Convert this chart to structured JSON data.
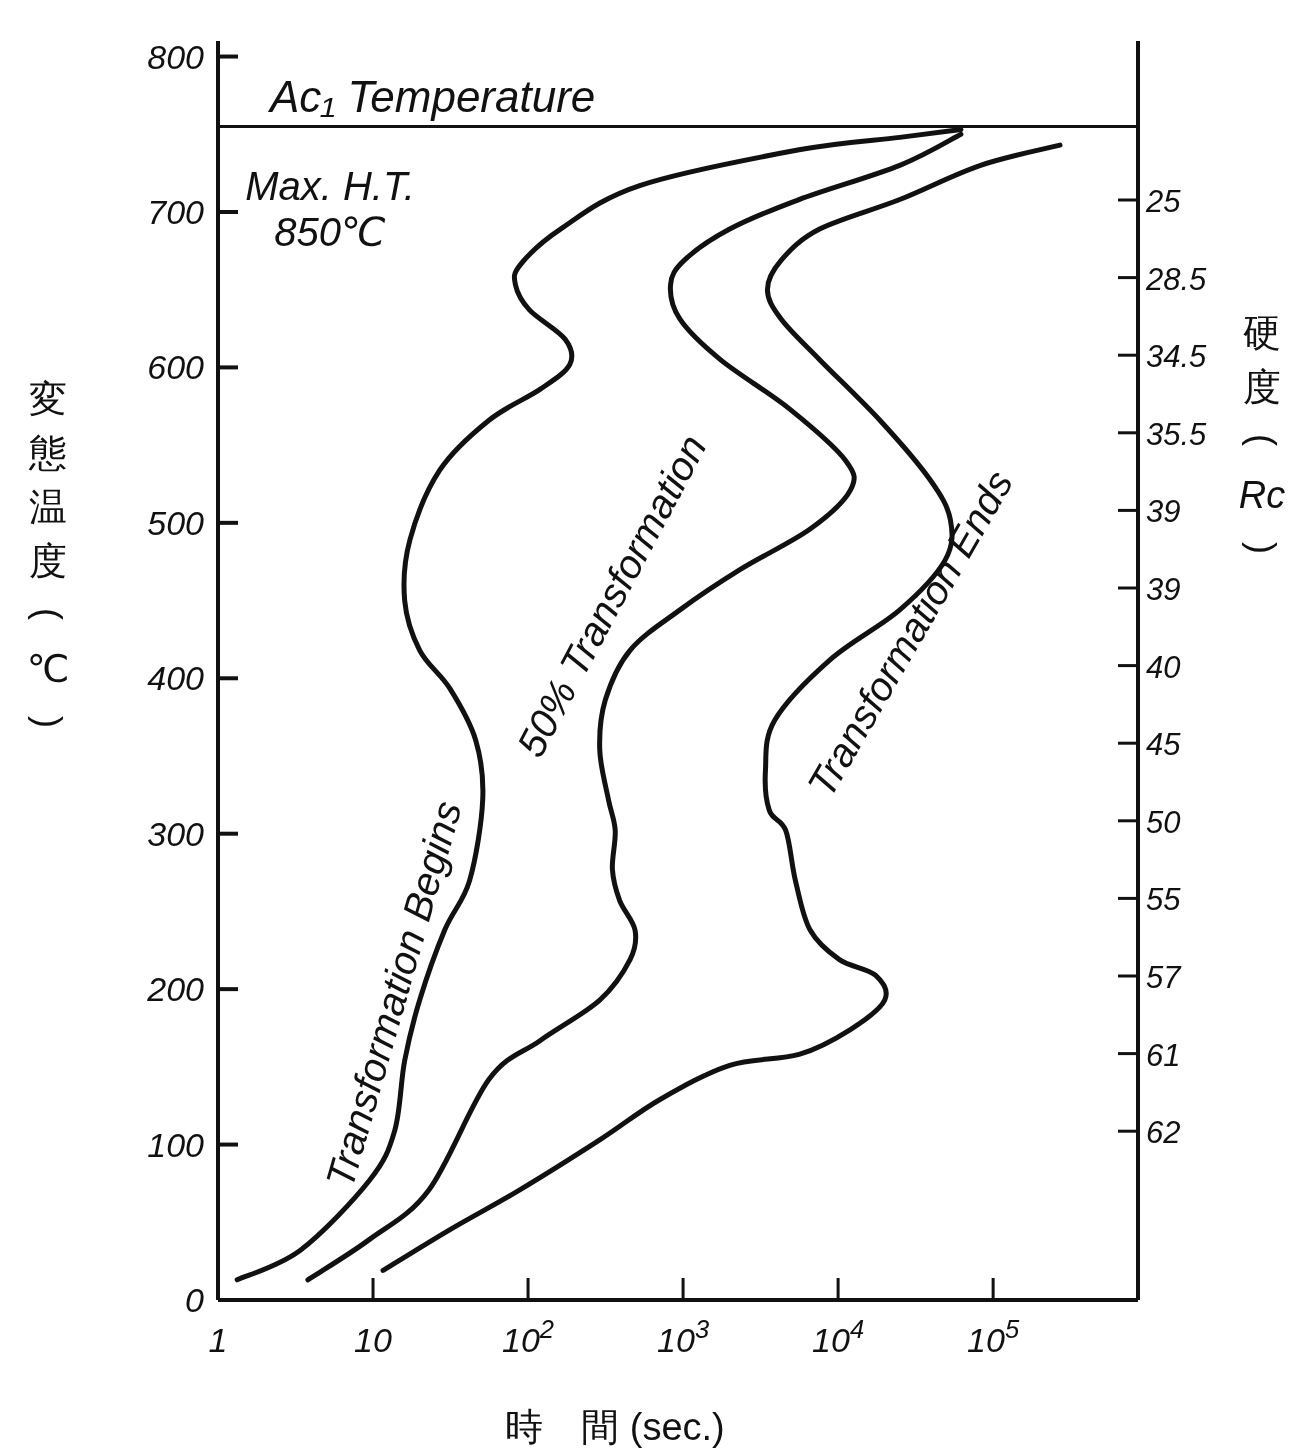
{
  "chart_data": {
    "type": "line",
    "xlabel": "時　間 (sec.)",
    "ylabel": "変態温度 (℃)",
    "y2label": "硬度 (Rc)",
    "log": "x",
    "grid": false,
    "marker": "none",
    "line_style": "solid",
    "xlim": [
      1,
      860000
    ],
    "xticks": [
      1,
      10,
      {
        "value": 100,
        "label": "10$^{2}$"
      },
      {
        "value": 1000,
        "label": "10$^{3}$"
      },
      {
        "value": 10000,
        "label": "10$^{4}$"
      },
      {
        "value": 100000,
        "label": "10$^{5}$"
      }
    ],
    "ylim": [
      0,
      810
    ],
    "yticks": [
      0,
      100,
      200,
      300,
      400,
      500,
      600,
      700,
      800
    ],
    "ref_lines": [
      {
        "axis": "y",
        "value": 755,
        "label": "Ac₁ Temperature",
        "color": "#111111",
        "line_style": "solid"
      }
    ],
    "annotations": [
      "Max. H.T.\n850℃"
    ],
    "y2_categories": [
      "25",
      "28.5",
      "34.5",
      "35.5",
      "39",
      "39",
      "40",
      "45",
      "50",
      "55",
      "57",
      "61",
      "62"
    ],
    "series": [
      {
        "name": "Transformation Begins",
        "color": "#111111",
        "x": [
          1.33,
          3.4,
          9.5,
          13.8,
          16,
          20,
          29,
          42,
          51,
          46,
          31.5,
          20,
          16,
          17.3,
          27,
          56,
          120,
          186,
          174,
          102,
          83,
          89,
          162,
          525,
          5600,
          25000,
          62000
        ],
        "values": [
          13,
          32,
          77,
          109,
          154,
          193,
          238,
          270,
          322,
          360,
          393,
          418,
          450,
          489,
          534,
          566,
          586,
          602,
          618,
          637,
          653,
          666,
          689,
          717,
          740,
          748,
          753
        ]
      },
      {
        "name": "50% Transformation",
        "color": "#111111",
        "x": [
          3.8,
          9.5,
          23,
          56,
          120,
          290,
          455,
          490,
          390,
          350,
          365,
          330,
          290,
          315,
          455,
          955,
          2340,
          6600,
          12000,
          11200,
          4900,
          1740,
          955,
          830,
          1020,
          2000,
          5600,
          25000,
          62000
        ],
        "values": [
          13,
          39,
          71,
          142,
          167,
          193,
          219,
          238,
          257,
          277,
          302,
          322,
          354,
          386,
          418,
          444,
          470,
          496,
          521,
          540,
          573,
          605,
          631,
          653,
          669,
          689,
          708,
          730,
          750
        ]
      },
      {
        "name": "Transformation Ends",
        "color": "#111111",
        "x": [
          11.6,
          31,
          89,
          290,
          710,
          2000,
          5600,
          12000,
          20000,
          17400,
          10200,
          6600,
          5300,
          4600,
          3600,
          3400,
          3900,
          8900,
          25000,
          49000,
          53000,
          39000,
          18600,
          7600,
          4300,
          3500,
          4300,
          7600,
          25000,
          83000,
          270000
        ],
        "values": [
          19,
          45,
          71,
          103,
          129,
          151,
          158,
          174,
          193,
          209,
          219,
          238,
          270,
          302,
          315,
          341,
          373,
          412,
          444,
          476,
          502,
          528,
          566,
          605,
          631,
          650,
          669,
          689,
          708,
          730,
          743
        ]
      }
    ]
  }
}
